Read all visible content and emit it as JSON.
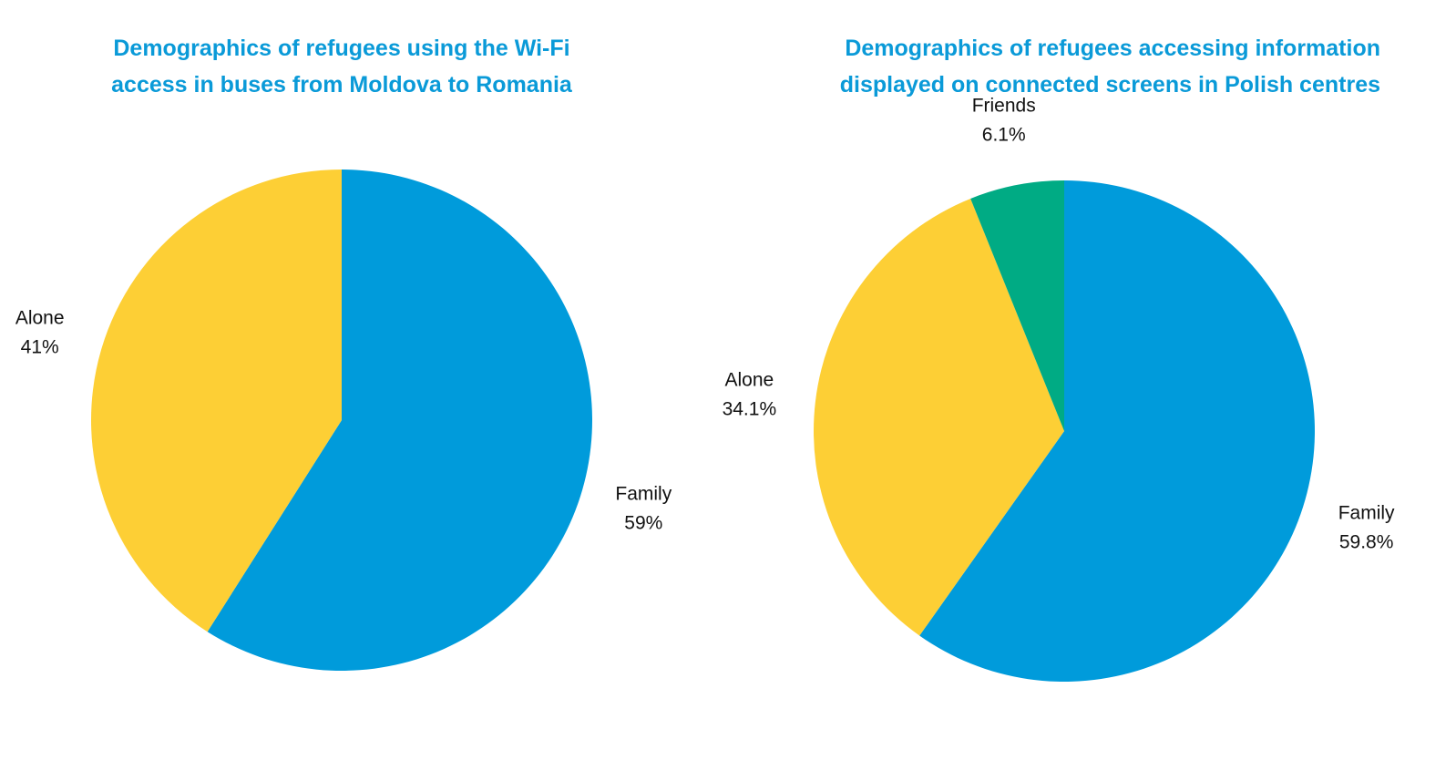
{
  "chart_data": [
    {
      "type": "pie",
      "title": "Demographics of refugees using the Wi-Fi access in buses from Moldova to Romania",
      "title_lines": [
        "Demographics of refugees using the Wi-Fi",
        "access in buses from Moldova to Romania"
      ],
      "start_angle_deg": 0,
      "direction": "clockwise",
      "slices": [
        {
          "label": "Family",
          "value": 59,
          "value_label": "59%",
          "color": "#009bdb"
        },
        {
          "label": "Alone",
          "value": 41,
          "value_label": "41%",
          "color": "#fdcf35"
        }
      ]
    },
    {
      "type": "pie",
      "title": "Demographics of refugees accessing information displayed on connected screens in Polish centres",
      "title_lines": [
        "Demographics of refugees accessing information",
        "displayed on connected screens in Polish centres"
      ],
      "start_angle_deg": 0,
      "direction": "clockwise",
      "slices": [
        {
          "label": "Family",
          "value": 59.8,
          "value_label": "59.8%",
          "color": "#009bdb"
        },
        {
          "label": "Alone",
          "value": 34.1,
          "value_label": "34.1%",
          "color": "#fdcf35"
        },
        {
          "label": "Friends",
          "value": 6.1,
          "value_label": "6.1%",
          "color": "#00ab84"
        }
      ]
    }
  ]
}
